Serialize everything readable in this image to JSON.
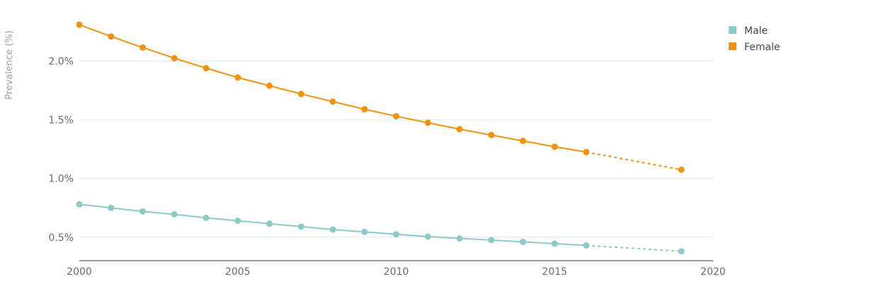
{
  "chart_data": {
    "type": "line",
    "title": "",
    "xlabel": "",
    "ylabel": "Prevalence (%)",
    "xlim": [
      2000,
      2020
    ],
    "ylim": [
      0.3,
      2.4
    ],
    "x_ticks": [
      2000,
      2005,
      2010,
      2015,
      2020
    ],
    "y_ticks": [
      0.5,
      1.0,
      1.5,
      2.0
    ],
    "y_tick_labels": [
      "0.5%",
      "1.0%",
      "1.5%",
      "2.0%"
    ],
    "grid": "horizontal",
    "legend_position": "top-right",
    "series": [
      {
        "name": "Male",
        "color": "#8ec9c7",
        "x": [
          2000,
          2001,
          2002,
          2003,
          2004,
          2005,
          2006,
          2007,
          2008,
          2009,
          2010,
          2011,
          2012,
          2013,
          2014,
          2015,
          2016
        ],
        "values": [
          0.78,
          0.75,
          0.72,
          0.695,
          0.665,
          0.64,
          0.615,
          0.59,
          0.565,
          0.545,
          0.525,
          0.505,
          0.49,
          0.475,
          0.46,
          0.445,
          0.43
        ],
        "projection": {
          "x": [
            2016,
            2019
          ],
          "values": [
            0.43,
            0.38
          ]
        }
      },
      {
        "name": "Female",
        "color": "#f0920e",
        "x": [
          2000,
          2001,
          2002,
          2003,
          2004,
          2005,
          2006,
          2007,
          2008,
          2009,
          2010,
          2011,
          2012,
          2013,
          2014,
          2015,
          2016
        ],
        "values": [
          2.31,
          2.21,
          2.115,
          2.025,
          1.94,
          1.86,
          1.79,
          1.72,
          1.655,
          1.59,
          1.53,
          1.475,
          1.42,
          1.37,
          1.32,
          1.27,
          1.225
        ],
        "projection": {
          "x": [
            2016,
            2019
          ],
          "values": [
            1.225,
            1.075
          ]
        }
      }
    ]
  }
}
